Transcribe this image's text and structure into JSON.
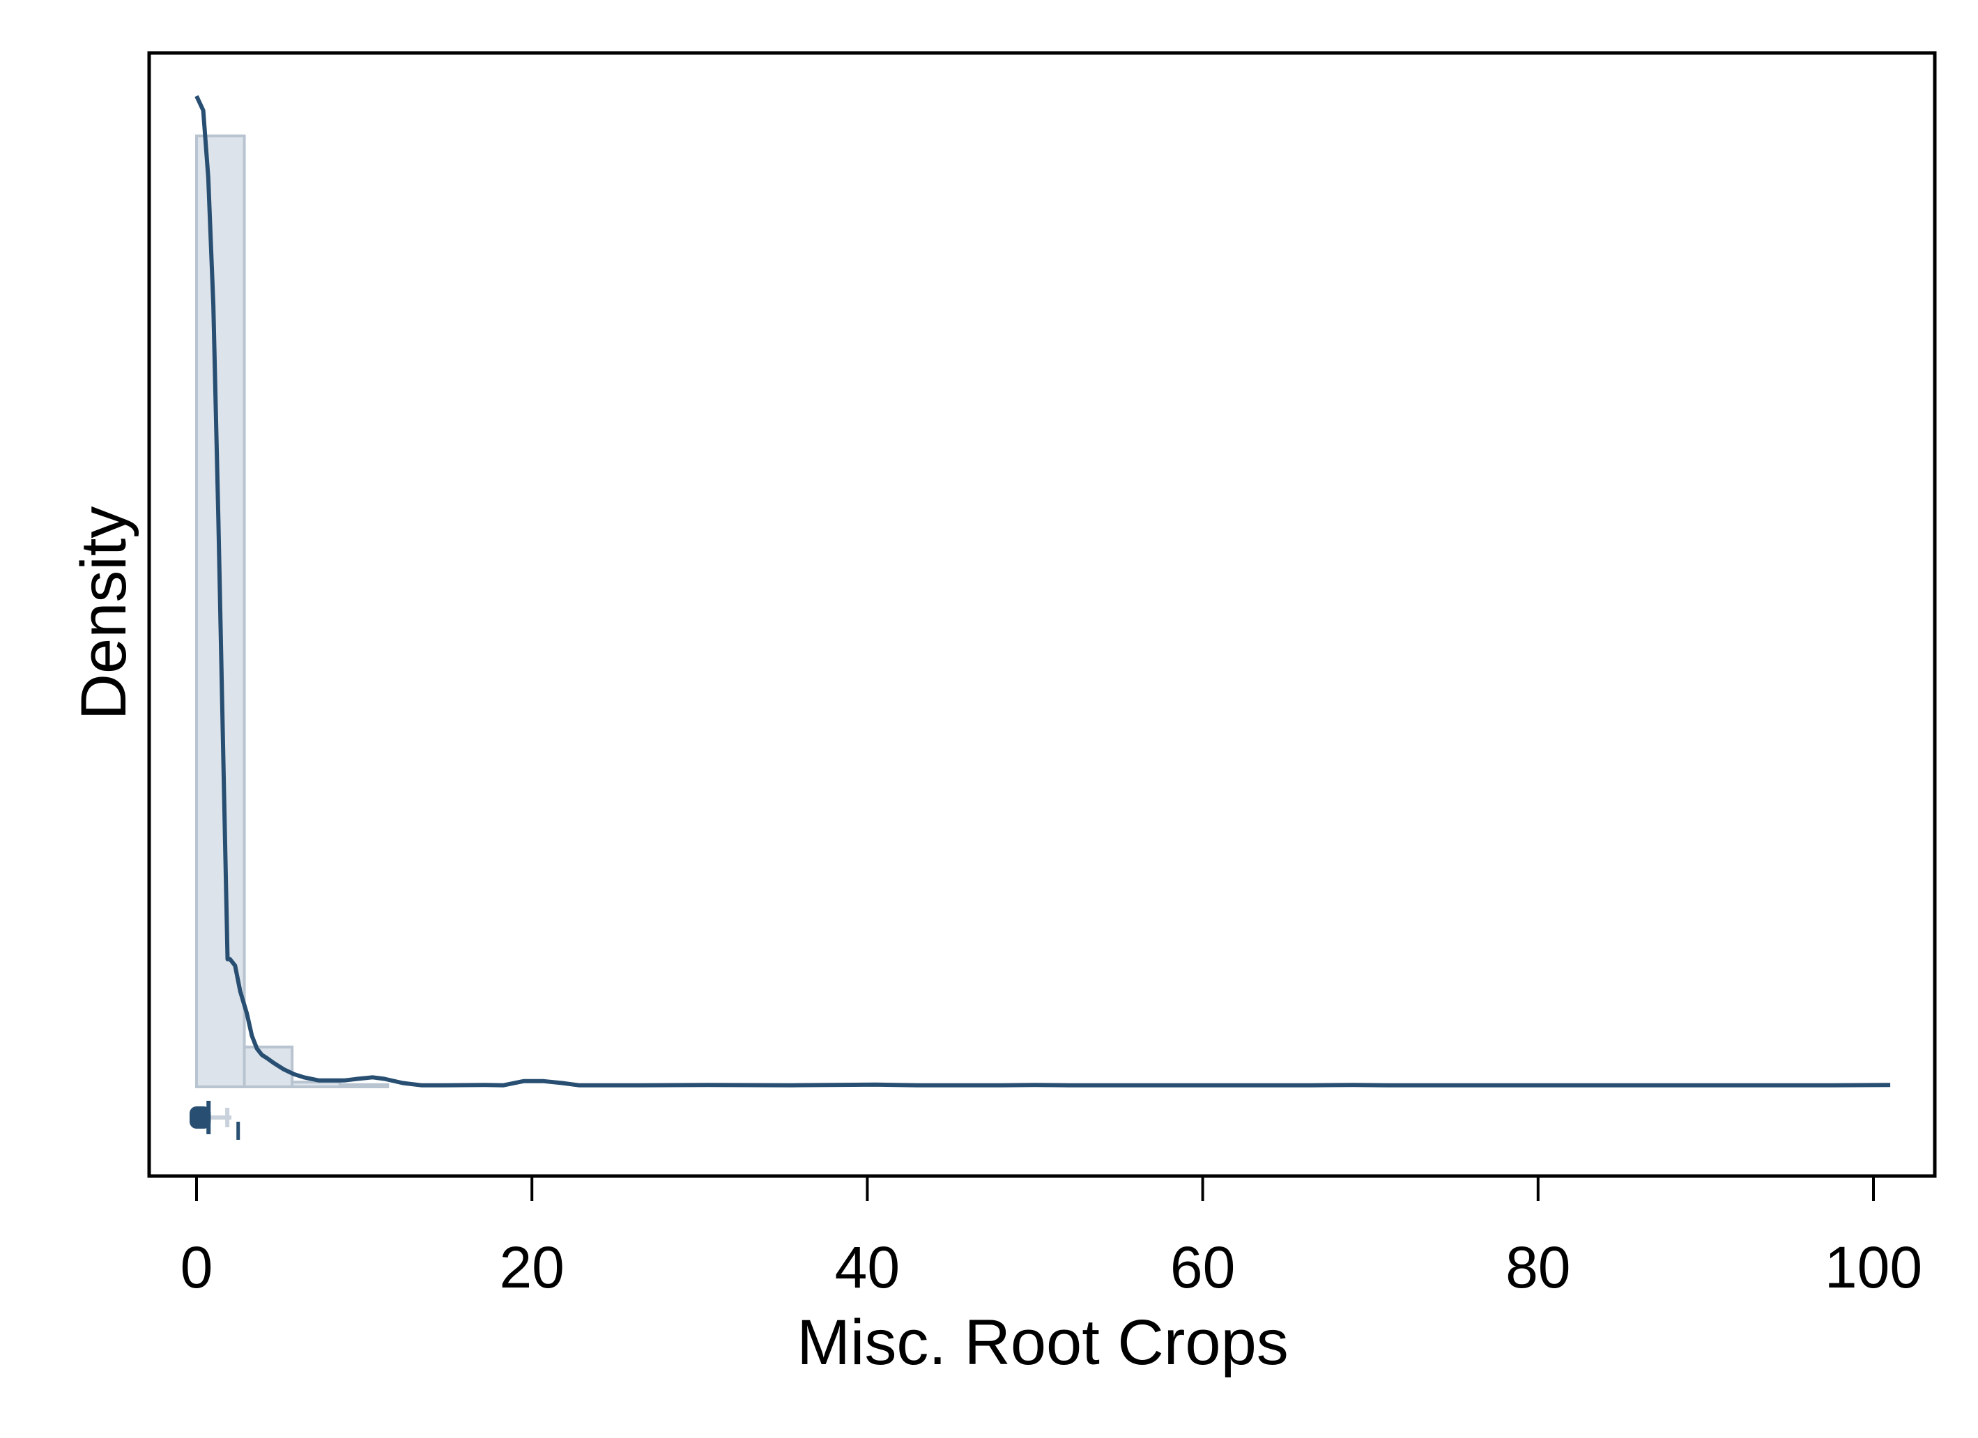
{
  "chart_data": {
    "type": "histogram+kde",
    "title": "",
    "xlabel": "Misc. Root Crops",
    "ylabel": "Density",
    "xlim": [
      -2.8,
      103.5
    ],
    "ylim": [
      -0.026,
      0.325
    ],
    "x_ticks": [
      0,
      20,
      40,
      60,
      80,
      100
    ],
    "y_ticks": [],
    "grid": false,
    "legend": "none",
    "colors": {
      "kde_line": "#284f72",
      "bar_fill": "#dde3ea",
      "bar_stroke": "#b8c4d0",
      "frame": "#000000",
      "boxplot": "#284f72"
    },
    "histogram": {
      "bin_width": 2.85,
      "bins": [
        {
          "x0": 0.0,
          "x1": 2.85,
          "density": 0.298
        },
        {
          "x0": 2.85,
          "x1": 5.7,
          "density": 0.0125
        },
        {
          "x0": 5.7,
          "x1": 8.55,
          "density": 0.0015
        },
        {
          "x0": 8.55,
          "x1": 11.4,
          "density": 0.0007
        }
      ]
    },
    "kde": {
      "x": [
        0,
        0.4,
        0.7,
        1.0,
        1.3,
        1.6,
        1.85,
        2.0,
        2.3,
        2.6,
        3.0,
        3.3,
        3.6,
        3.9,
        4.2,
        4.6,
        5.2,
        5.8,
        6.4,
        7.3,
        8.8,
        9.6,
        10.5,
        11.2,
        12.3,
        13.4,
        14.8,
        17.2,
        18.3,
        19.5,
        20.7,
        21.8,
        22.8,
        26.5,
        30.5,
        35.5,
        40.5,
        43.0,
        48.0,
        50.0,
        52.0,
        66.5,
        69.0,
        71.0,
        75.0,
        78.0,
        97.5,
        101.0
      ],
      "y": [
        0.3105,
        0.306,
        0.285,
        0.245,
        0.178,
        0.102,
        0.04,
        0.04,
        0.038,
        0.03,
        0.023,
        0.016,
        0.012,
        0.01,
        0.009,
        0.0075,
        0.0055,
        0.004,
        0.003,
        0.002,
        0.002,
        0.0025,
        0.003,
        0.0025,
        0.0012,
        0.0005,
        0.0005,
        0.0006,
        0.0005,
        0.0018,
        0.0018,
        0.0012,
        0.0005,
        0.0005,
        0.0006,
        0.0005,
        0.0007,
        0.0005,
        0.0005,
        0.0006,
        0.0005,
        0.0005,
        0.0006,
        0.0005,
        0.0005,
        0.0005,
        0.0005,
        0.0006
      ]
    },
    "boxplot": {
      "min": 0,
      "q1": 0.1,
      "median": 0.3,
      "q3": 0.6,
      "whisker_hi": 1.5,
      "outlier_max": 1.9
    }
  }
}
